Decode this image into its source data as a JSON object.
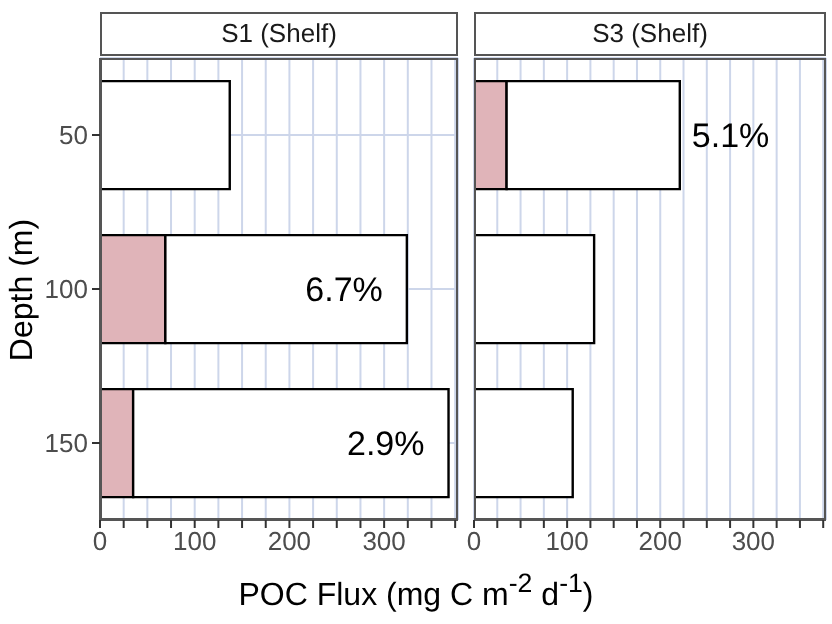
{
  "chart_data": [
    {
      "type": "bar",
      "orientation": "horizontal",
      "stacked": true,
      "title": "S1 (Shelf)",
      "ylabel": "Depth (m)",
      "xlabel": "POC Flux (mg C m$^{-2}$ d$^{-1}$)",
      "categories": [
        "50",
        "100",
        "150"
      ],
      "series": [
        {
          "color": "#e0b4b9",
          "values": [
            null,
            69,
            35
          ]
        },
        {
          "color": "#ffffff",
          "values": [
            137,
            255,
            333
          ]
        }
      ],
      "xlim": [
        0,
        378
      ],
      "xticks": [
        0,
        {
          "value": 25,
          "label": null
        },
        {
          "value": 50,
          "label": null
        },
        {
          "value": 75,
          "label": null
        },
        100,
        {
          "value": 125,
          "label": null
        },
        {
          "value": 150,
          "label": null
        },
        {
          "value": 175,
          "label": null
        },
        200,
        {
          "value": 225,
          "label": null
        },
        {
          "value": 250,
          "label": null
        },
        {
          "value": 275,
          "label": null
        },
        300,
        {
          "value": 325,
          "label": null
        },
        {
          "value": 350,
          "label": null
        },
        {
          "value": 375,
          "label": null
        }
      ],
      "grid": true,
      "annotations": [
        {
          "text": "6.7%",
          "x": 324,
          "y": "100"
        },
        {
          "text": "2.9%",
          "x": 368,
          "y": "150"
        }
      ]
    },
    {
      "type": "bar",
      "orientation": "horizontal",
      "stacked": true,
      "title": "S3 (Shelf)",
      "categories": [
        "50",
        "100",
        "150"
      ],
      "tick_labels": "x",
      "series": [
        {
          "color": "#e0b4b9",
          "values": [
            35,
            null,
            null
          ]
        },
        {
          "color": "#ffffff",
          "values": [
            186,
            129,
            106
          ]
        }
      ],
      "xlim": [
        0,
        378
      ],
      "xticks": [
        0,
        {
          "value": 25,
          "label": null
        },
        {
          "value": 50,
          "label": null
        },
        {
          "value": 75,
          "label": null
        },
        100,
        {
          "value": 125,
          "label": null
        },
        {
          "value": 150,
          "label": null
        },
        {
          "value": 175,
          "label": null
        },
        200,
        {
          "value": 225,
          "label": null
        },
        {
          "value": 250,
          "label": null
        },
        {
          "value": 275,
          "label": null
        },
        300,
        {
          "value": 325,
          "label": null
        },
        {
          "value": 350,
          "label": null
        },
        {
          "value": 375,
          "label": null
        }
      ],
      "grid": true,
      "annotations": [
        {
          "text": "5.1%",
          "x": 221,
          "y": "50"
        }
      ]
    }
  ]
}
